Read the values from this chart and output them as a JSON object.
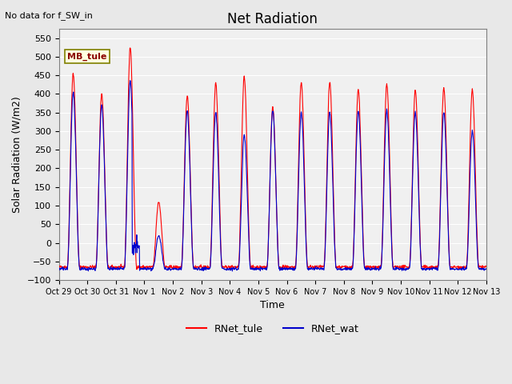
{
  "title": "Net Radiation",
  "subtitle": "No data for f_SW_in",
  "ylabel": "Solar Radiation (W/m2)",
  "xlabel": "Time",
  "ylim": [
    -100,
    575
  ],
  "yticks": [
    -100,
    -50,
    0,
    50,
    100,
    150,
    200,
    250,
    300,
    350,
    400,
    450,
    500,
    550
  ],
  "color_tule": "#FF0000",
  "color_wat": "#0000CC",
  "legend_label_tule": "RNet_tule",
  "legend_label_wat": "RNet_wat",
  "annotation_text": "MB_tule",
  "background_color": "#E8E8E8",
  "plot_bg_color": "#F0F0F0",
  "x_tick_labels": [
    "Oct 29",
    "Oct 30",
    "Oct 31",
    "Nov 1",
    "Nov 2",
    "Nov 3",
    "Nov 4",
    "Nov 5",
    "Nov 6",
    "Nov 7",
    "Nov 8",
    "Nov 9",
    "Nov 10",
    "Nov 11",
    "Nov 12",
    "Nov 13"
  ],
  "num_days": 15,
  "points_per_day": 96,
  "baseline": -65,
  "day_peaks_tule": [
    455,
    400,
    525,
    110,
    395,
    430,
    445,
    365,
    430,
    430,
    410,
    425,
    410,
    415,
    410
  ],
  "day_peaks_wat": [
    405,
    370,
    435,
    20,
    355,
    350,
    290,
    355,
    350,
    350,
    355,
    355,
    350,
    350,
    300
  ]
}
